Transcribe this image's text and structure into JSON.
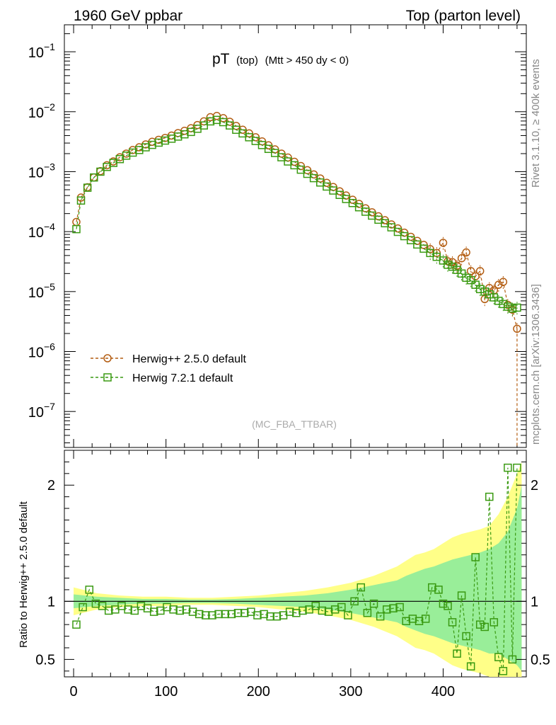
{
  "header": {
    "left": "1960 GeV ppbar",
    "right": "Top (parton level)"
  },
  "side": {
    "rivet": "Rivet 3.1.10, ≥ 400k events",
    "mcplots": "mcplots.cern.ch [arXiv:1306.3436]"
  },
  "chart_data": {
    "type": "scatter",
    "title": {
      "main": "pT",
      "sub1": "(top)",
      "sub2": "(Mtt > 450 dy < 0)"
    },
    "watermark": "(MC_FBA_TTBAR)",
    "xlim": [
      -10,
      490
    ],
    "ylim_log10": [
      -7.6,
      -0.55
    ],
    "xticks": [
      0,
      100,
      200,
      300,
      400
    ],
    "xtick_labels": [
      "0",
      "100",
      "200",
      "300",
      "400"
    ],
    "ytick_exponents": [
      -1,
      -2,
      -3,
      -4,
      -5,
      -6,
      -7
    ],
    "ytick_labels": [
      "10",
      "10",
      "10",
      "10",
      "10",
      "10",
      "10"
    ],
    "ytick_sup": [
      "−1",
      "−2",
      "−3",
      "−4",
      "−5",
      "−6",
      "−7"
    ],
    "legend": {
      "position": "lower-left"
    },
    "series": [
      {
        "name": "Herwig++ 2.5.0 default",
        "color": "#b35d12",
        "marker": "circle",
        "x": [
          3,
          8,
          15,
          22,
          29,
          36,
          43,
          50,
          57,
          64,
          71,
          78,
          85,
          92,
          99,
          106,
          113,
          120,
          127,
          134,
          141,
          148,
          155,
          162,
          169,
          176,
          183,
          190,
          197,
          204,
          211,
          218,
          225,
          232,
          239,
          246,
          253,
          260,
          267,
          274,
          281,
          288,
          295,
          302,
          309,
          316,
          323,
          330,
          337,
          344,
          351,
          358,
          365,
          372,
          379,
          386,
          393,
          400,
          405,
          410,
          415,
          420,
          425,
          430,
          435,
          440,
          445,
          450,
          455,
          460,
          465,
          470,
          475,
          480
        ],
        "y": [
          0.000145,
          0.00037,
          0.00055,
          0.0008,
          0.00102,
          0.00128,
          0.00148,
          0.00174,
          0.002,
          0.0023,
          0.00255,
          0.00285,
          0.00315,
          0.0034,
          0.00365,
          0.004,
          0.0044,
          0.0048,
          0.0053,
          0.006,
          0.0069,
          0.0081,
          0.0085,
          0.0078,
          0.0068,
          0.0058,
          0.005,
          0.00435,
          0.00375,
          0.0032,
          0.00275,
          0.00235,
          0.002,
          0.00172,
          0.00146,
          0.00124,
          0.00106,
          0.0009,
          0.00077,
          0.00065,
          0.000555,
          0.00047,
          0.0004,
          0.00034,
          0.00029,
          0.000245,
          0.00021,
          0.00018,
          0.000155,
          0.000132,
          0.000113,
          9.6e-05,
          8.2e-05,
          7e-05,
          6e-05,
          5.1e-05,
          4.4e-05,
          6.5e-05,
          3.2e-05,
          3.1e-05,
          2.7e-05,
          3.6e-05,
          4.5e-05,
          2.2e-05,
          1.8e-05,
          2.2e-05,
          7.5e-06,
          1.15e-05,
          1.05e-05,
          1.3e-05,
          1.45e-05,
          6e-06,
          5e-06,
          2.4e-06
        ]
      },
      {
        "name": "Herwig 7.2.1 default",
        "color": "#3a9a12",
        "marker": "square",
        "x": [
          3,
          8,
          15,
          22,
          29,
          36,
          43,
          50,
          57,
          64,
          71,
          78,
          85,
          92,
          99,
          106,
          113,
          120,
          127,
          134,
          141,
          148,
          155,
          162,
          169,
          176,
          183,
          190,
          197,
          204,
          211,
          218,
          225,
          232,
          239,
          246,
          253,
          260,
          267,
          274,
          281,
          288,
          295,
          302,
          309,
          316,
          323,
          330,
          337,
          344,
          351,
          358,
          365,
          372,
          379,
          386,
          393,
          400,
          405,
          410,
          415,
          420,
          425,
          430,
          435,
          440,
          445,
          450,
          455,
          460,
          465,
          470,
          475,
          480
        ],
        "y": [
          0.00011,
          0.00033,
          0.00054,
          0.0008,
          0.001,
          0.0012,
          0.0014,
          0.00162,
          0.00185,
          0.00208,
          0.0023,
          0.00255,
          0.0028,
          0.00305,
          0.0033,
          0.00355,
          0.00385,
          0.0042,
          0.0046,
          0.0052,
          0.0059,
          0.0069,
          0.0073,
          0.0067,
          0.0059,
          0.005,
          0.00435,
          0.00375,
          0.00325,
          0.00278,
          0.0024,
          0.00205,
          0.00174,
          0.00148,
          0.00128,
          0.00108,
          0.00092,
          0.00078,
          0.00066,
          0.000565,
          0.000485,
          0.00041,
          0.00035,
          0.0003,
          0.000255,
          0.000215,
          0.000185,
          0.000158,
          0.000138,
          0.000118,
          9.9e-05,
          8.4e-05,
          7.2e-05,
          6.1e-05,
          5.2e-05,
          4.4e-05,
          3.8e-05,
          3.3e-05,
          2.8e-05,
          2.6e-05,
          2.3e-05,
          2e-05,
          1.7e-05,
          1.55e-05,
          1.3e-05,
          1.1e-05,
          1e-05,
          9e-06,
          8e-06,
          7e-06,
          6.2e-06,
          5.6e-06,
          5.2e-06,
          5.4e-06
        ]
      }
    ],
    "ratio": {
      "ylabel": "Ratio to Herwig++ 2.5.0 default",
      "ylim": [
        0.35,
        2.3
      ],
      "ytick_values": [
        0.5,
        1,
        2
      ],
      "ytick_labels": [
        "0.5",
        "1",
        "2"
      ],
      "reference_line": 1.0,
      "x": [
        3,
        10,
        17,
        24,
        31,
        38,
        45,
        52,
        59,
        66,
        73,
        80,
        87,
        94,
        101,
        108,
        115,
        122,
        129,
        136,
        143,
        150,
        157,
        164,
        171,
        178,
        185,
        192,
        199,
        206,
        213,
        220,
        227,
        234,
        241,
        248,
        255,
        262,
        269,
        276,
        283,
        290,
        297,
        304,
        311,
        318,
        325,
        332,
        339,
        346,
        353,
        360,
        367,
        374,
        381,
        388,
        395,
        400,
        405,
        410,
        415,
        420,
        425,
        430,
        435,
        440,
        445,
        450,
        455,
        460,
        465,
        470,
        475,
        480
      ],
      "values": [
        0.8,
        0.95,
        1.1,
        0.98,
        0.96,
        0.92,
        0.93,
        0.96,
        0.93,
        0.92,
        0.96,
        0.94,
        0.91,
        0.92,
        0.95,
        0.93,
        0.92,
        0.93,
        0.91,
        0.89,
        0.88,
        0.88,
        0.89,
        0.89,
        0.89,
        0.9,
        0.9,
        0.91,
        0.88,
        0.89,
        0.87,
        0.87,
        0.88,
        0.91,
        0.9,
        0.92,
        0.93,
        0.96,
        0.92,
        0.91,
        0.93,
        0.95,
        0.88,
        1.0,
        1.12,
        0.9,
        0.98,
        0.87,
        0.93,
        0.94,
        0.95,
        0.83,
        0.85,
        0.83,
        0.85,
        1.12,
        1.1,
        0.98,
        0.96,
        0.82,
        0.55,
        1.05,
        0.7,
        0.44,
        1.38,
        0.8,
        0.78,
        1.9,
        0.82,
        0.52,
        0.4,
        2.15,
        0.5,
        2.15
      ],
      "band_x": [
        0,
        25,
        50,
        75,
        100,
        125,
        150,
        175,
        200,
        225,
        250,
        275,
        300,
        325,
        350,
        360,
        370,
        380,
        390,
        400,
        410,
        420,
        430,
        440,
        450,
        460,
        470,
        480,
        485
      ],
      "yellow_lo": [
        0.88,
        0.93,
        0.95,
        0.96,
        0.96,
        0.97,
        0.97,
        0.96,
        0.95,
        0.93,
        0.91,
        0.88,
        0.84,
        0.78,
        0.7,
        0.65,
        0.6,
        0.58,
        0.55,
        0.5,
        0.45,
        0.42,
        0.4,
        0.38,
        0.35,
        0.35,
        0.35,
        0.35,
        0.35
      ],
      "yellow_hi": [
        1.12,
        1.07,
        1.05,
        1.04,
        1.04,
        1.03,
        1.03,
        1.04,
        1.05,
        1.07,
        1.09,
        1.12,
        1.16,
        1.22,
        1.3,
        1.35,
        1.4,
        1.42,
        1.45,
        1.5,
        1.55,
        1.58,
        1.6,
        1.62,
        1.65,
        1.75,
        1.9,
        2.1,
        2.2
      ],
      "green_lo": [
        0.94,
        0.96,
        0.97,
        0.98,
        0.98,
        0.985,
        0.985,
        0.98,
        0.97,
        0.96,
        0.95,
        0.93,
        0.9,
        0.86,
        0.82,
        0.78,
        0.75,
        0.72,
        0.7,
        0.67,
        0.64,
        0.62,
        0.6,
        0.58,
        0.55,
        0.55,
        0.5,
        0.45,
        0.4
      ],
      "green_hi": [
        1.06,
        1.04,
        1.03,
        1.02,
        1.02,
        1.015,
        1.015,
        1.02,
        1.03,
        1.04,
        1.05,
        1.07,
        1.1,
        1.14,
        1.18,
        1.22,
        1.25,
        1.28,
        1.3,
        1.33,
        1.36,
        1.38,
        1.4,
        1.42,
        1.45,
        1.5,
        1.6,
        1.8,
        2.0
      ]
    }
  }
}
